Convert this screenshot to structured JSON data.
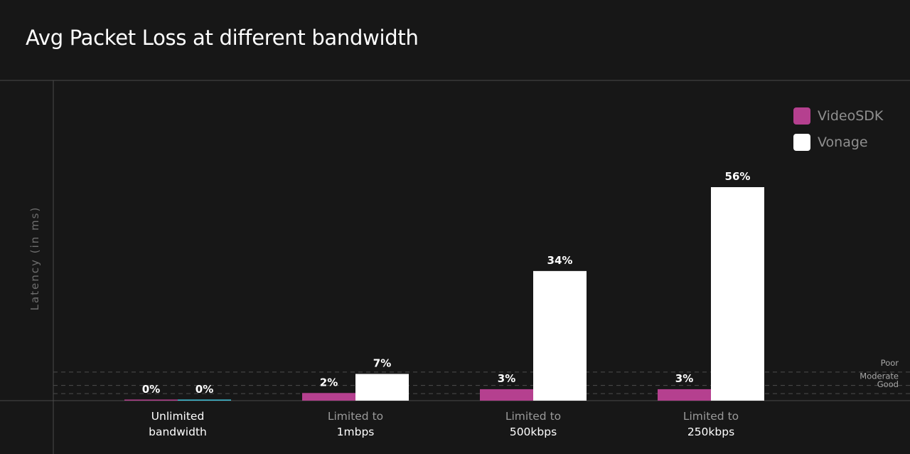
{
  "title": "Avg Packet Loss at different bandwidth",
  "chart_data": {
    "type": "bar",
    "ylabel": "Latency (in ms)",
    "ylim": [
      0,
      56
    ],
    "categories": [
      [
        "Unlimited",
        "bandwidth"
      ],
      [
        "Limited to",
        "1mbps"
      ],
      [
        "Limited to",
        "500kbps"
      ],
      [
        "Limited to",
        "250kbps"
      ]
    ],
    "category_label_colors": [
      "#ffffff",
      "#9a9a9a",
      "#9a9a9a",
      "#9a9a9a"
    ],
    "category_value_colors": [
      "#ffffff",
      "#ffffff",
      "#ffffff",
      "#ffffff"
    ],
    "series": [
      {
        "name": "VideoSDK",
        "values": [
          0,
          2,
          3,
          3
        ],
        "labels": [
          "0%",
          "2%",
          "3%",
          "3%"
        ],
        "color": "#b5408f",
        "zero_color": "#b5408f"
      },
      {
        "name": "Vonage",
        "values": [
          0,
          7,
          34,
          56
        ],
        "labels": [
          "0%",
          "7%",
          "34%",
          "56%"
        ],
        "color": "#ffffff",
        "zero_color": "#3fc1d9"
      }
    ],
    "thresholds": [
      {
        "label": "Poor",
        "value": 7.5
      },
      {
        "label": "Moderate",
        "value": 4
      },
      {
        "label": "Good",
        "value": 1.85
      }
    ],
    "legend_position": "top-right"
  },
  "colors": {
    "background": "#171717",
    "axis": "#4a4a4a",
    "grid_dashed": "#4d4d4d",
    "threshold_text": "#a8a8a8",
    "ylabel": "#6e6e6e",
    "value_label": "#ffffff"
  }
}
